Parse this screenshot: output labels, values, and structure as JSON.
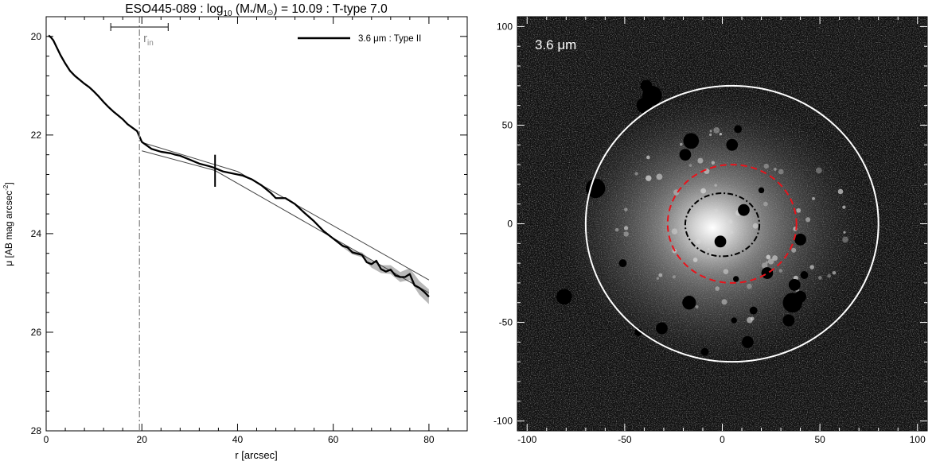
{
  "chart_data": [
    {
      "type": "line",
      "title": {
        "prefix": "ESO445-089 : log",
        "log_base": "10",
        "paren_open": " (M",
        "star": "*",
        "slash": "/M",
        "sun": "⊙",
        "suffix": ") = 10.09 : T-type 7.0"
      },
      "xlabel": "r [arcsec]",
      "ylabel": {
        "main": "μ [AB mag arcsec",
        "sup": "-2",
        "end": "]"
      },
      "xlim": [
        0,
        88
      ],
      "ylim": [
        28,
        19.6
      ],
      "y_inverted": true,
      "xticks": [
        0,
        20,
        40,
        60,
        80
      ],
      "yticks": [
        20,
        22,
        24,
        26,
        28
      ],
      "legend": {
        "position": "top-right",
        "entry": "3.6 μm : Type II"
      },
      "r_in_label": {
        "main": "r",
        "sub": "in"
      },
      "annotations": {
        "r_in_position": 19.5,
        "r_in_range": [
          13.5,
          25.5
        ],
        "break_radius": 35.3,
        "break_mu_range": [
          22.4,
          23.05
        ]
      },
      "series": [
        {
          "role": "profile",
          "color": "#000000",
          "x": [
            0.5,
            1,
            1.5,
            2,
            3,
            4,
            5,
            6,
            7,
            8,
            9,
            10,
            11,
            12,
            13,
            14,
            15,
            16,
            17,
            18,
            19,
            20,
            22,
            24,
            26,
            27,
            28,
            30,
            32,
            34,
            35,
            37,
            39,
            41,
            43,
            45,
            47,
            48,
            50,
            52,
            54,
            56,
            58,
            60,
            62,
            63,
            64,
            66,
            67,
            68,
            69,
            70,
            71,
            72,
            73,
            74,
            75,
            76,
            77,
            78,
            79,
            80
          ],
          "y": [
            19.98,
            20.02,
            20.08,
            20.18,
            20.38,
            20.55,
            20.7,
            20.8,
            20.88,
            20.96,
            21.03,
            21.12,
            21.22,
            21.33,
            21.43,
            21.52,
            21.6,
            21.68,
            21.78,
            21.85,
            21.92,
            22.14,
            22.28,
            22.34,
            22.37,
            22.4,
            22.42,
            22.5,
            22.58,
            22.63,
            22.66,
            22.74,
            22.78,
            22.82,
            22.9,
            23.02,
            23.18,
            23.28,
            23.28,
            23.4,
            23.58,
            23.75,
            23.95,
            24.1,
            24.25,
            24.28,
            24.38,
            24.43,
            24.58,
            24.62,
            24.55,
            24.72,
            24.77,
            24.73,
            24.85,
            24.88,
            24.88,
            24.82,
            25.05,
            25.1,
            25.18,
            25.28
          ]
        },
        {
          "role": "inner-fit",
          "color": "#444444",
          "x": [
            20,
            40,
            80
          ],
          "y": [
            22.15,
            22.74,
            24.94
          ]
        },
        {
          "role": "outer-fit",
          "color": "#444444",
          "x": [
            20,
            35.3,
            80
          ],
          "y": [
            22.32,
            22.72,
            25.2
          ]
        }
      ],
      "uncertainty_band": {
        "color": "#b8b8b8",
        "x": [
          60,
          62,
          64,
          66,
          68,
          70,
          72,
          74,
          76,
          78,
          80
        ],
        "halfwidth": [
          0.02,
          0.03,
          0.04,
          0.05,
          0.07,
          0.08,
          0.09,
          0.1,
          0.12,
          0.14,
          0.15
        ]
      }
    },
    {
      "type": "image",
      "label": "3.6 μm",
      "xlim": [
        -105,
        105
      ],
      "ylim": [
        -105,
        105
      ],
      "xticks": [
        -100,
        -50,
        0,
        50,
        100
      ],
      "yticks": [
        -100,
        -50,
        0,
        50,
        100
      ],
      "colors": {
        "background": "#101010",
        "outer": "#ffffff",
        "middle": "#e8141c",
        "inner": "#000000"
      },
      "galaxy_center": [
        -5,
        -2
      ],
      "ellipses": [
        {
          "name": "outer-isophote",
          "cx": 5,
          "cy": 0,
          "rx": 75,
          "ry": 70,
          "style": "solid",
          "color": "#ffffff"
        },
        {
          "name": "break-radius",
          "cx": 5,
          "cy": 0,
          "rx": 33,
          "ry": 30,
          "style": "dashed",
          "color": "#e8141c"
        },
        {
          "name": "inner-radius",
          "cx": 0,
          "cy": -0.5,
          "rx": 19,
          "ry": 16,
          "style": "dashdot",
          "color": "#000000"
        }
      ],
      "masks": [
        {
          "x": -36,
          "y": 65,
          "r": 5
        },
        {
          "x": -39,
          "y": 70,
          "r": 3
        },
        {
          "x": -40,
          "y": 60,
          "r": 4
        },
        {
          "x": -65,
          "y": 18,
          "r": 5
        },
        {
          "x": -16,
          "y": 42,
          "r": 4
        },
        {
          "x": -19,
          "y": 35,
          "r": 3
        },
        {
          "x": 5,
          "y": 40,
          "r": 3
        },
        {
          "x": 8,
          "y": 48,
          "r": 2
        },
        {
          "x": 11,
          "y": 7,
          "r": 3
        },
        {
          "x": -1,
          "y": -9,
          "r": 3
        },
        {
          "x": 20,
          "y": 17,
          "r": 1.5
        },
        {
          "x": 40,
          "y": -8,
          "r": 3
        },
        {
          "x": 23,
          "y": -25,
          "r": 3
        },
        {
          "x": 37,
          "y": -31,
          "r": 3
        },
        {
          "x": 34,
          "y": -49,
          "r": 3
        },
        {
          "x": 36,
          "y": -40,
          "r": 5
        },
        {
          "x": 40,
          "y": -37,
          "r": 3
        },
        {
          "x": -17,
          "y": -40,
          "r": 3.5
        },
        {
          "x": -81,
          "y": -37,
          "r": 4
        },
        {
          "x": -43,
          "y": -55,
          "r": 2
        },
        {
          "x": -31,
          "y": -53,
          "r": 3
        },
        {
          "x": -51,
          "y": -20,
          "r": 2
        },
        {
          "x": 16,
          "y": -44,
          "r": 2
        },
        {
          "x": 13,
          "y": -60,
          "r": 3
        },
        {
          "x": -9,
          "y": -65,
          "r": 2
        },
        {
          "x": 6,
          "y": -49,
          "r": 1.5
        },
        {
          "x": 7,
          "y": -28,
          "r": 1.5
        },
        {
          "x": 42,
          "y": -26,
          "r": 2
        }
      ]
    }
  ]
}
